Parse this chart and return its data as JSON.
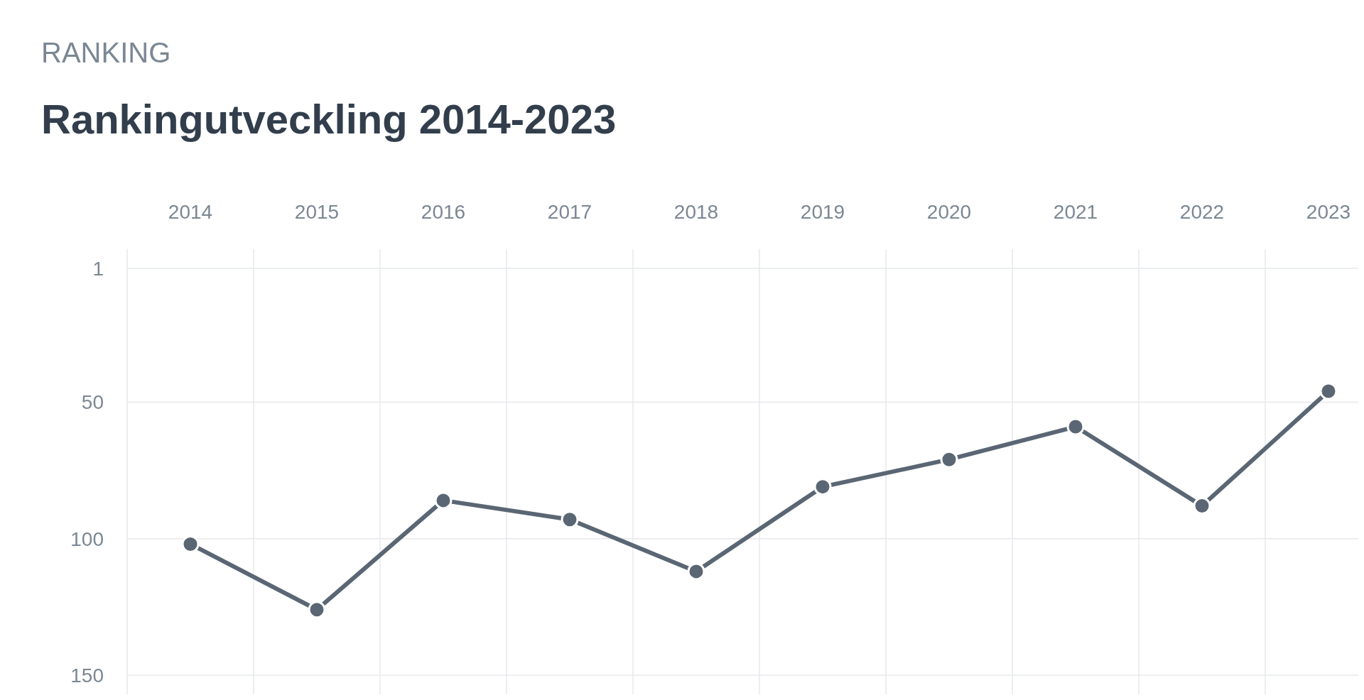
{
  "chart_data": {
    "type": "line",
    "subtitle": "RANKING",
    "title": "Rankingutveckling 2014-2023",
    "categories": [
      "2014",
      "2015",
      "2016",
      "2017",
      "2018",
      "2019",
      "2020",
      "2021",
      "2022",
      "2023"
    ],
    "series": [
      {
        "color": "#5a6673",
        "values": [
          102,
          126,
          86,
          93,
          112,
          81,
          71,
          59,
          88,
          46
        ]
      }
    ],
    "ylim": [
      157,
      -6
    ],
    "yticks": [
      1,
      50,
      100,
      150
    ],
    "grid": true,
    "marker": "circle",
    "line_style": "solid"
  }
}
